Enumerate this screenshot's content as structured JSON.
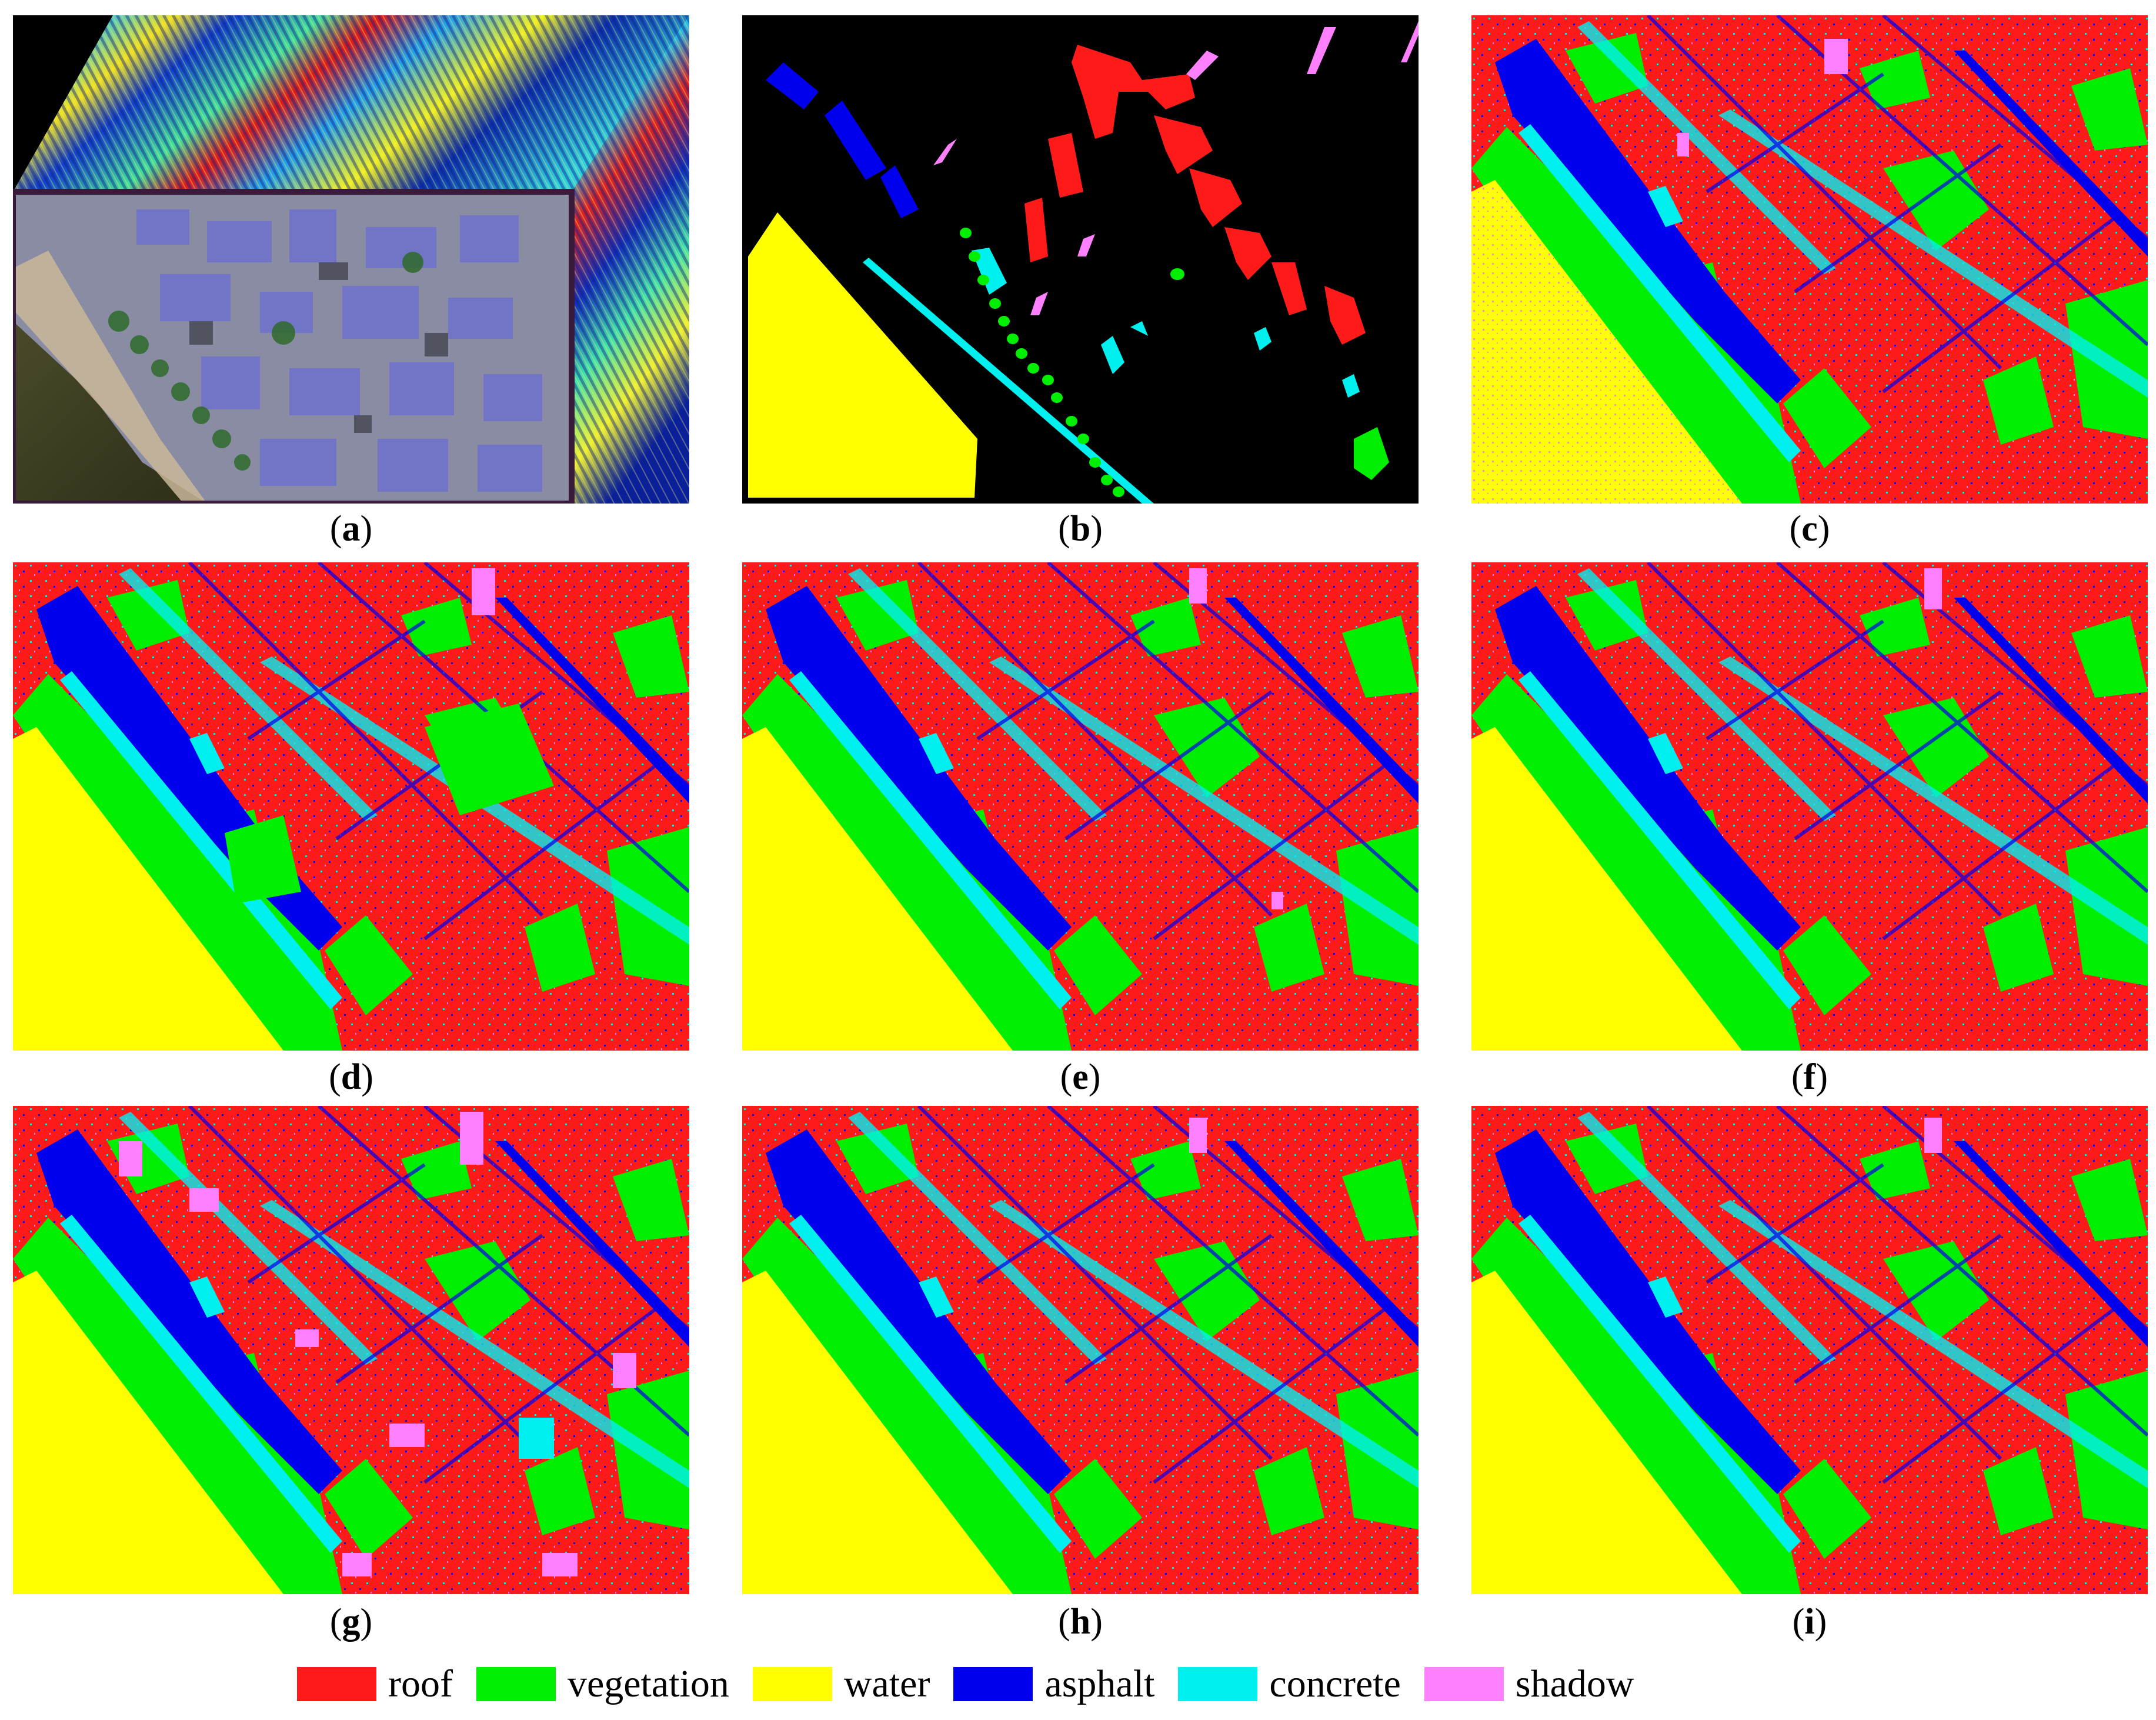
{
  "panels": [
    {
      "letter": "a",
      "kind": "cube"
    },
    {
      "letter": "b",
      "kind": "ground-truth"
    },
    {
      "letter": "c",
      "kind": "map"
    },
    {
      "letter": "d",
      "kind": "map"
    },
    {
      "letter": "e",
      "kind": "map"
    },
    {
      "letter": "f",
      "kind": "map"
    },
    {
      "letter": "g",
      "kind": "map"
    },
    {
      "letter": "h",
      "kind": "map"
    },
    {
      "letter": "i",
      "kind": "map"
    }
  ],
  "legend": [
    {
      "label": "roof",
      "color": "#ff1a1a"
    },
    {
      "label": "vegetation",
      "color": "#00ee00"
    },
    {
      "label": "water",
      "color": "#ffff00"
    },
    {
      "label": "asphalt",
      "color": "#0000ee"
    },
    {
      "label": "concrete",
      "color": "#00f0f0"
    },
    {
      "label": "shadow",
      "color": "#ff80ff"
    }
  ]
}
